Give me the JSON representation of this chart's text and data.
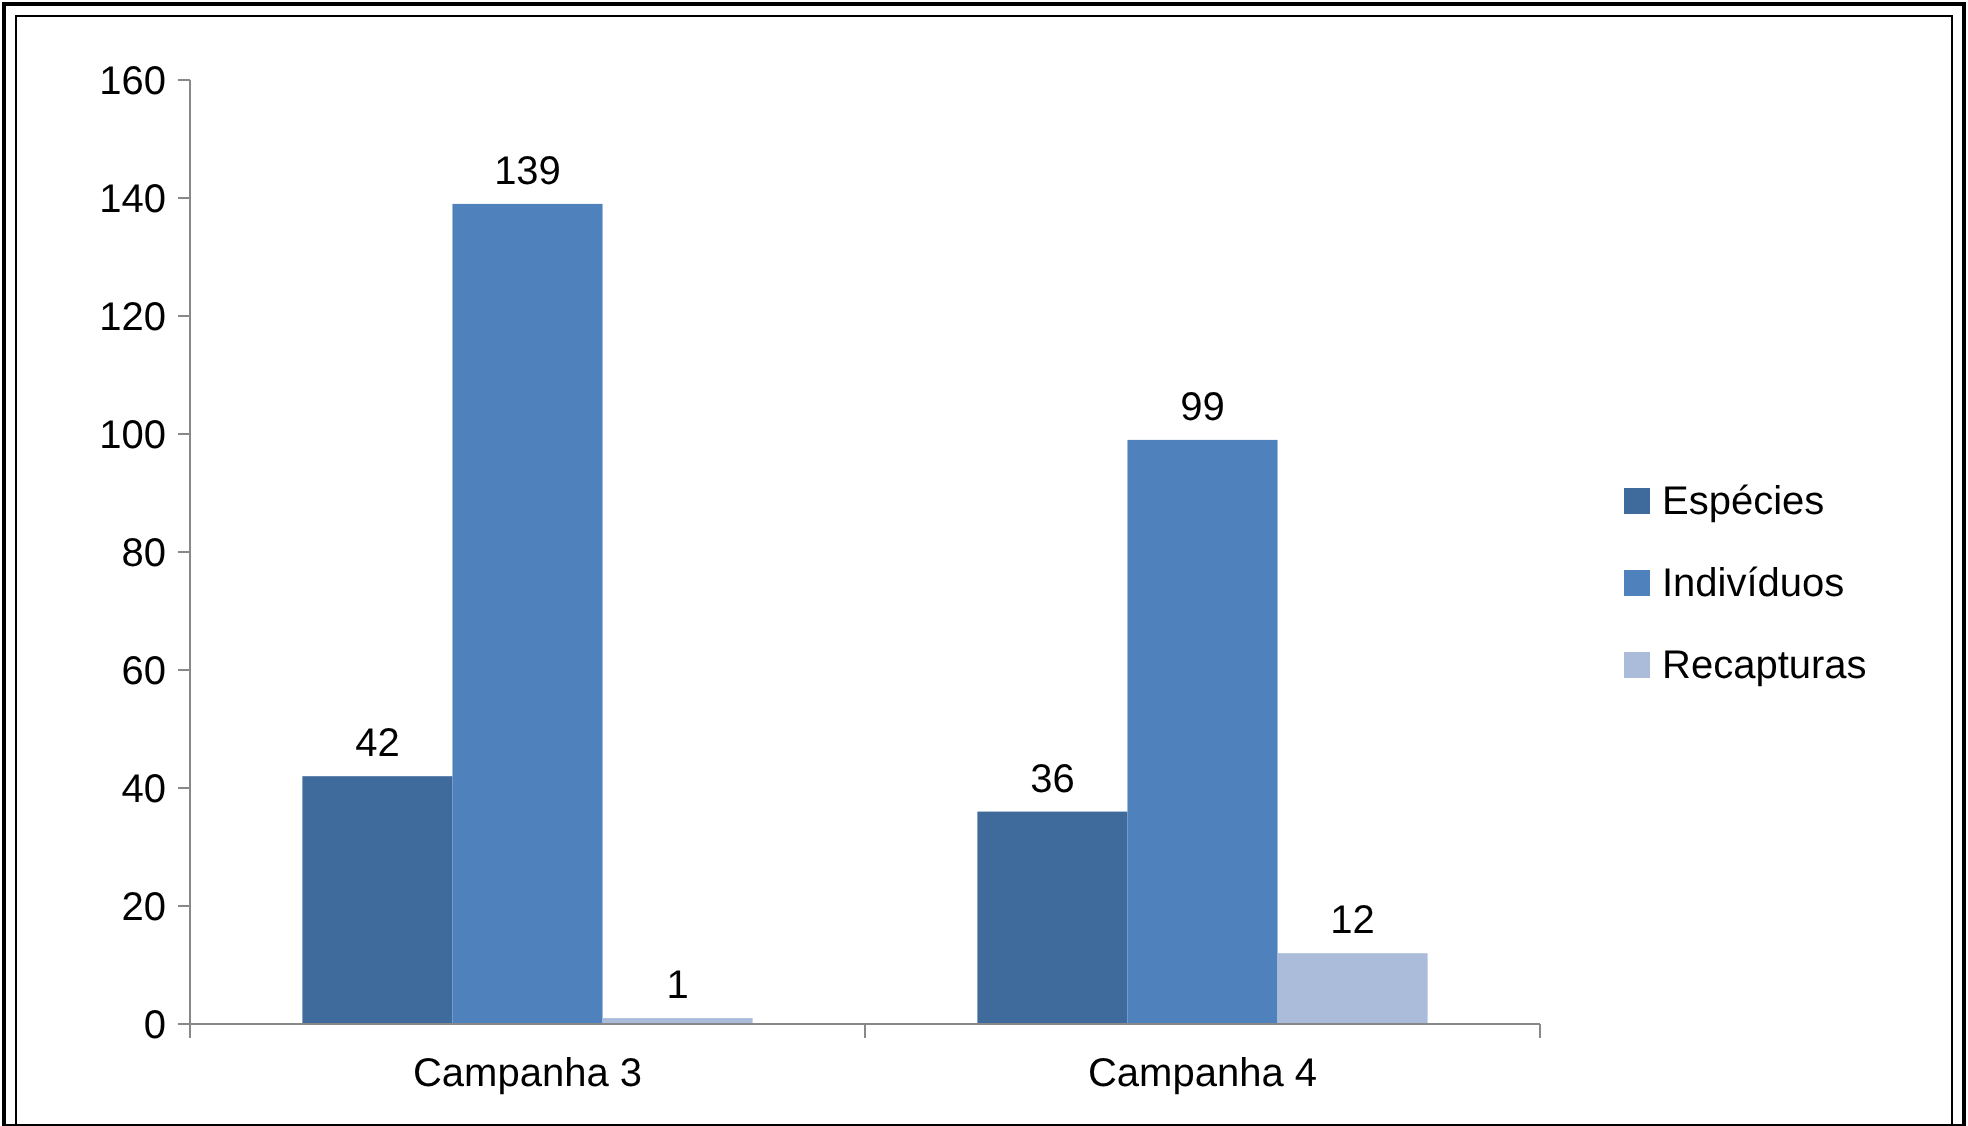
{
  "chart_data": {
    "type": "bar",
    "categories": [
      "Campanha 3",
      "Campanha 4"
    ],
    "series": [
      {
        "name": "Espécies",
        "color": "#3e6a9c",
        "values": [
          42,
          36
        ]
      },
      {
        "name": "Indivíduos",
        "color": "#4f81bd",
        "values": [
          139,
          99
        ]
      },
      {
        "name": "Recapturas",
        "color": "#aabcd9",
        "values": [
          1,
          12
        ]
      }
    ],
    "ylim": [
      0,
      160
    ],
    "yticks": [
      0,
      20,
      40,
      60,
      80,
      100,
      120,
      140,
      160
    ],
    "data_labels": true,
    "legend": "right",
    "grid": false
  }
}
